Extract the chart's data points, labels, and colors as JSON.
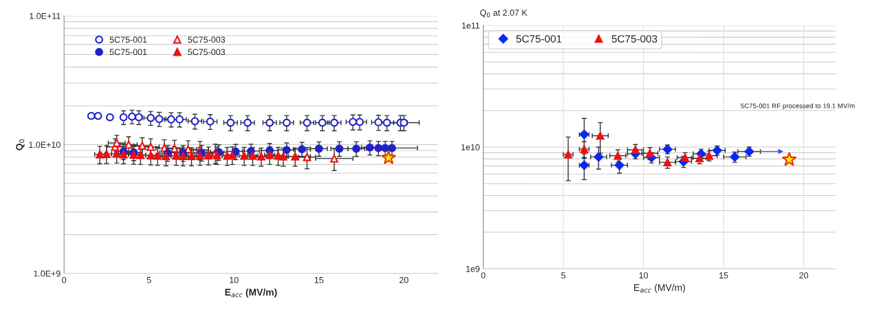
{
  "chart_data": [
    {
      "type": "scatter",
      "xlabel": "E$_{acc}$ (MV/m)",
      "ylabel": "Q$_{0}$",
      "log": "y",
      "grid": "y",
      "legend": "top left",
      "xlim": [
        0,
        22
      ],
      "xticks": [
        0,
        5,
        10,
        15,
        20
      ],
      "ylim": [
        1000000000.0,
        100000000000.0
      ],
      "yticks": [
        {
          "value": 1000000000.0,
          "label": "1.0E+9"
        },
        {
          "value": 2000000000.0,
          "label": null
        },
        {
          "value": 3000000000.0,
          "label": null
        },
        {
          "value": 4000000000.0,
          "label": null
        },
        {
          "value": 5000000000.0,
          "label": null
        },
        {
          "value": 6000000000.0,
          "label": null
        },
        {
          "value": 7000000000.0,
          "label": null
        },
        {
          "value": 8000000000.0,
          "label": null
        },
        {
          "value": 9000000000.0,
          "label": null
        },
        {
          "value": 10000000000.0,
          "label": "1.0E+10"
        },
        {
          "value": 20000000000.0,
          "label": null
        },
        {
          "value": 30000000000.0,
          "label": null
        },
        {
          "value": 40000000000.0,
          "label": null
        },
        {
          "value": 50000000000.0,
          "label": null
        },
        {
          "value": 60000000000.0,
          "label": null
        },
        {
          "value": 70000000000.0,
          "label": null
        },
        {
          "value": 80000000000.0,
          "label": null
        },
        {
          "value": 90000000000.0,
          "label": null
        },
        {
          "value": 100000000000.0,
          "label": "1.0E+11"
        }
      ],
      "series": [
        {
          "name": "5C75-001",
          "color": "#2222cc",
          "marker": "circle",
          "x": [
            1.6,
            2.0,
            2.7,
            3.5,
            4.0,
            4.4,
            5.1,
            5.6,
            6.3,
            6.8,
            7.7,
            8.6,
            9.8,
            10.8,
            12.1,
            13.1,
            14.3,
            15.2,
            15.9,
            17.0,
            17.4,
            18.5,
            19.0,
            19.8,
            20.0
          ],
          "values": [
            16700000000.0,
            16700000000.0,
            16300000000.0,
            16300000000.0,
            16500000000.0,
            16300000000.0,
            16100000000.0,
            15800000000.0,
            15700000000.0,
            15700000000.0,
            15200000000.0,
            15100000000.0,
            14800000000.0,
            14800000000.0,
            14800000000.0,
            14800000000.0,
            14800000000.0,
            14800000000.0,
            14800000000.0,
            15000000000.0,
            15000000000.0,
            14900000000.0,
            14800000000.0,
            14800000000.0,
            14800000000.0
          ],
          "errors": [
            null,
            null,
            null,
            2000000000.0,
            2000000000.0,
            2000000000.0,
            2000000000.0,
            2000000000.0,
            2000000000.0,
            2000000000.0,
            2000000000.0,
            2000000000.0,
            2000000000.0,
            2000000000.0,
            2000000000.0,
            2000000000.0,
            2000000000.0,
            2000000000.0,
            2000000000.0,
            2000000000.0,
            2000000000.0,
            2000000000.0,
            2000000000.0,
            2000000000.0,
            2000000000.0
          ],
          "xerrors": [
            null,
            null,
            null,
            null,
            null,
            0.2,
            0.4,
            0.4,
            0.4,
            0.4,
            0.4,
            0.4,
            0.4,
            0.4,
            0.4,
            0.4,
            0.4,
            0.4,
            0.4,
            0.4,
            0.4,
            0.4,
            0.4,
            0.4,
            0.9
          ]
        },
        {
          "name": "5C75-003",
          "color": "#ee1111",
          "marker": "triangle",
          "x": [
            3.0,
            3.1,
            3.8,
            4.6,
            5.1,
            5.9,
            6.5,
            7.3,
            8.0,
            8.9,
            14.3,
            15.9
          ],
          "values": [
            9600000000.0,
            10300000000.0,
            10000000000.0,
            9800000000.0,
            9600000000.0,
            9400000000.0,
            9300000000.0,
            9200000000.0,
            9100000000.0,
            8600000000.0,
            8000000000.0,
            7800000000.0
          ],
          "errors": [
            1500000000.0,
            1500000000.0,
            1500000000.0,
            1500000000.0,
            1500000000.0,
            1500000000.0,
            1500000000.0,
            1500000000.0,
            1500000000.0,
            1500000000.0,
            1500000000.0,
            1500000000.0
          ],
          "xerrors": [
            0.5,
            0.5,
            0.5,
            0.5,
            0.5,
            0.5,
            0.5,
            0.5,
            0.5,
            0.5,
            0.5,
            1.1
          ]
        },
        {
          "name": "5C75-001",
          "color": "#2222cc",
          "marker": "circle",
          "x": [
            3.5,
            4.1,
            6.1,
            7.0,
            8.1,
            9.1,
            10.1,
            11.0,
            12.1,
            13.1,
            14.0,
            15.0,
            16.2,
            17.2,
            18.0,
            18.5,
            18.9,
            19.3
          ],
          "values": [
            8850000000.0,
            8700000000.0,
            8600000000.0,
            8600000000.0,
            8650000000.0,
            8750000000.0,
            8850000000.0,
            8900000000.0,
            9000000000.0,
            9100000000.0,
            9200000000.0,
            9300000000.0,
            9300000000.0,
            9300000000.0,
            9500000000.0,
            9400000000.0,
            9400000000.0,
            9400000000.0
          ],
          "errors": [
            1200000000.0,
            1200000000.0,
            1200000000.0,
            1200000000.0,
            1200000000.0,
            1200000000.0,
            1200000000.0,
            1200000000.0,
            1200000000.0,
            1200000000.0,
            1200000000.0,
            1200000000.0,
            1200000000.0,
            1200000000.0,
            1200000000.0,
            1200000000.0,
            1200000000.0,
            1200000000.0
          ],
          "xerrors": [
            0.5,
            0.5,
            0.5,
            0.5,
            0.5,
            0.5,
            0.5,
            0.5,
            0.5,
            0.5,
            0.5,
            0.5,
            0.5,
            0.5,
            0.5,
            null,
            null,
            1.5
          ]
        },
        {
          "name": "5C75-003",
          "color": "#ee1111",
          "marker": "triangle",
          "x": [
            2.1,
            2.5,
            3.1,
            3.5,
            4.1,
            4.5,
            5.1,
            5.5,
            6.0,
            6.6,
            7.0,
            7.5,
            8.0,
            8.5,
            9.0,
            9.6,
            9.9,
            10.6,
            11.1,
            11.6,
            12.1,
            12.6,
            12.9,
            13.6
          ],
          "values": [
            8400000000.0,
            8450000000.0,
            8500000000.0,
            8400000000.0,
            8350000000.0,
            8300000000.0,
            8250000000.0,
            8200000000.0,
            8150000000.0,
            8200000000.0,
            8150000000.0,
            8150000000.0,
            8200000000.0,
            8250000000.0,
            8300000000.0,
            8200000000.0,
            8300000000.0,
            8200000000.0,
            8200000000.0,
            8100000000.0,
            8300000000.0,
            8200000000.0,
            8100000000.0,
            8100000000.0
          ],
          "errors": [
            1300000000.0,
            1300000000.0,
            1300000000.0,
            1300000000.0,
            1300000000.0,
            1300000000.0,
            1300000000.0,
            1300000000.0,
            1300000000.0,
            1300000000.0,
            1300000000.0,
            1300000000.0,
            1300000000.0,
            1300000000.0,
            1300000000.0,
            1300000000.0,
            1300000000.0,
            1300000000.0,
            1300000000.0,
            1300000000.0,
            1300000000.0,
            1300000000.0,
            1300000000.0,
            1300000000.0
          ],
          "xerrors": [
            0.3,
            0.3,
            0.3,
            0.3,
            0.3,
            0.3,
            0.3,
            0.3,
            0.3,
            0.3,
            0.3,
            0.3,
            0.3,
            0.3,
            0.3,
            0.3,
            0.3,
            0.3,
            0.3,
            0.3,
            0.3,
            0.3,
            0.3,
            0.9
          ]
        },
        {
          "color": "#ffee00",
          "marker": "star",
          "x": [
            19.1
          ],
          "values": [
            7900000000.0
          ]
        }
      ]
    },
    {
      "type": "scatter",
      "title": "Q$_{0}$ at 2.07 K",
      "xlabel": "E$_{acc}$ (MV/m)",
      "log": "y",
      "grid": true,
      "legend": "top left",
      "xlim": [
        0,
        22
      ],
      "xticks": [
        0,
        5,
        10,
        15,
        20
      ],
      "ylim": [
        1000000000.0,
        100000000000.0
      ],
      "yticks": [
        {
          "value": 1000000000.0,
          "label": "1e9"
        },
        {
          "value": 2000000000.0,
          "label": null
        },
        {
          "value": 3000000000.0,
          "label": null
        },
        {
          "value": 4000000000.0,
          "label": null
        },
        {
          "value": 5000000000.0,
          "label": null
        },
        {
          "value": 6000000000.0,
          "label": null
        },
        {
          "value": 7000000000.0,
          "label": null
        },
        {
          "value": 8000000000.0,
          "label": null
        },
        {
          "value": 9000000000.0,
          "label": null
        },
        {
          "value": 10000000000.0,
          "label": "1e10"
        },
        {
          "value": 20000000000.0,
          "label": null
        },
        {
          "value": 30000000000.0,
          "label": null
        },
        {
          "value": 40000000000.0,
          "label": null
        },
        {
          "value": 50000000000.0,
          "label": null
        },
        {
          "value": 60000000000.0,
          "label": null
        },
        {
          "value": 70000000000.0,
          "label": null
        },
        {
          "value": 80000000000.0,
          "label": null
        },
        {
          "value": 90000000000.0,
          "label": null
        },
        {
          "value": 100000000000.0,
          "label": "1e11"
        }
      ],
      "annotations": [
        "5C75-001 RF processed to 19.1 MV/m"
      ],
      "series": [
        {
          "name": "5C75-001",
          "color": "#0a28f0",
          "marker": "diamond",
          "x": [
            6.3,
            6.3,
            7.2,
            8.5,
            9.5,
            10.5,
            11.5,
            12.5,
            13.6,
            14.6,
            15.7,
            16.6
          ],
          "values": [
            12700000000.0,
            7100000000.0,
            8300000000.0,
            7100000000.0,
            8800000000.0,
            8200000000.0,
            9600000000.0,
            7600000000.0,
            8800000000.0,
            9400000000.0,
            8300000000.0,
            9200000000.0
          ],
          "errors": [
            4500000000.0,
            1700000000.0,
            1700000000.0,
            1000000000.0,
            800000000.0,
            800000000.0,
            800000000.0,
            800000000.0,
            800000000.0,
            800000000.0,
            800000000.0,
            800000000.0
          ],
          "xerrors": [
            0.3,
            0.3,
            0.5,
            0.5,
            0.5,
            0.5,
            0.5,
            0.5,
            0.5,
            0.5,
            0.7,
            0.7
          ]
        },
        {
          "name": "5C75-003",
          "color": "#ee1111",
          "marker": "triangle",
          "x": [
            5.3,
            6.3,
            7.3,
            8.4,
            9.5,
            10.4,
            11.5,
            12.6,
            13.5,
            14.1
          ],
          "values": [
            8700000000.0,
            9600000000.0,
            12400000000.0,
            8500000000.0,
            9500000000.0,
            8900000000.0,
            7500000000.0,
            8200000000.0,
            8100000000.0,
            8500000000.0
          ],
          "errors": [
            3400000000.0,
            1500000000.0,
            3500000000.0,
            1000000000.0,
            1000000000.0,
            1000000000.0,
            800000000.0,
            800000000.0,
            800000000.0,
            800000000.0
          ],
          "xerrors": [
            0.3,
            0.3,
            0.5,
            0.5,
            0.5,
            0.5,
            0.5,
            0.5,
            0.5,
            0.5
          ]
        },
        {
          "color": "#ffee00",
          "marker": "star",
          "x": [
            19.1
          ],
          "values": [
            7900000000.0
          ]
        }
      ]
    }
  ]
}
